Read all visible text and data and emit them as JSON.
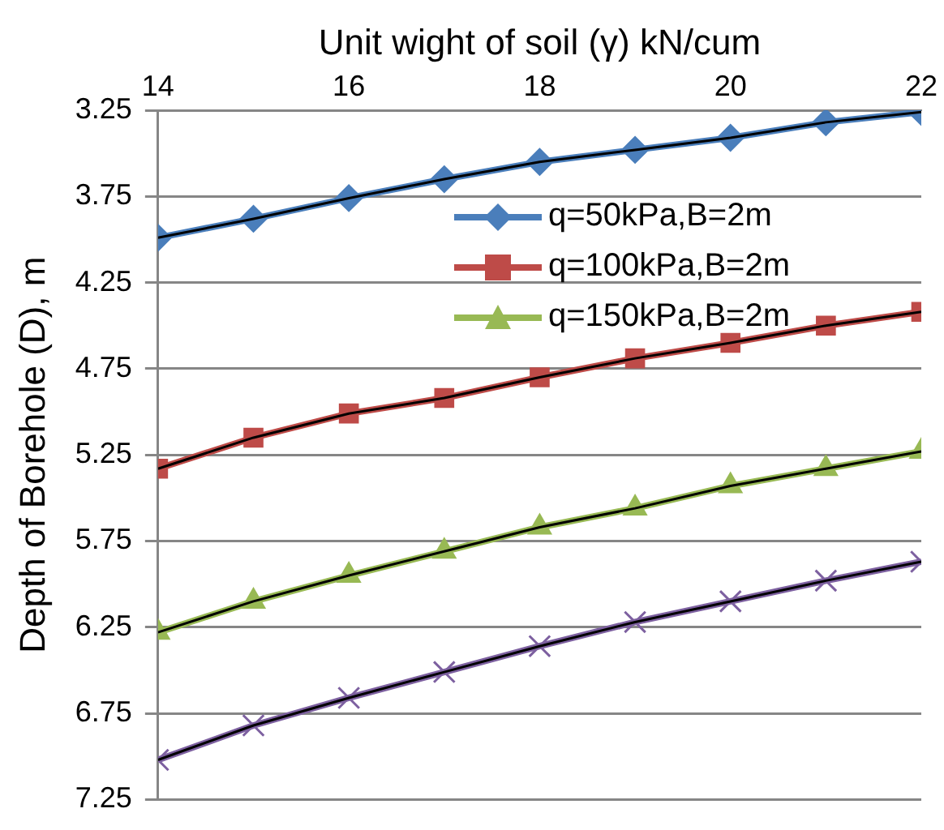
{
  "chart_data": {
    "type": "line",
    "xlabel": "Unit wight of soil (γ) kN/cum",
    "ylabel": "Depth of Borehole (D), m",
    "xlim": [
      14,
      22
    ],
    "xticks": [
      14,
      16,
      18,
      20,
      22
    ],
    "ylim": [
      7.25,
      3.25
    ],
    "yticks": [
      3.25,
      3.75,
      4.25,
      4.75,
      5.25,
      5.75,
      6.25,
      6.75,
      7.25
    ],
    "grid": "y",
    "legend": "top right",
    "line_style": "solid",
    "series": [
      {
        "name": "q=50kPa,B=2m",
        "color": "#4a7ebb",
        "marker": "diamond",
        "x": [
          14,
          15,
          16,
          17,
          18,
          19,
          20,
          21,
          22
        ],
        "values": [
          3.99,
          3.88,
          3.76,
          3.65,
          3.55,
          3.48,
          3.41,
          3.32,
          3.26
        ]
      },
      {
        "name": "q=100kPa,B=2m",
        "color": "#be4b48",
        "marker": "square",
        "x": [
          14,
          15,
          16,
          17,
          18,
          19,
          20,
          21,
          22
        ],
        "values": [
          5.33,
          5.15,
          5.01,
          4.92,
          4.8,
          4.69,
          4.6,
          4.5,
          4.42
        ]
      },
      {
        "name": "q=150kPa,B=2m",
        "color": "#98b954",
        "marker": "triangle",
        "x": [
          14,
          15,
          16,
          17,
          18,
          19,
          20,
          21,
          22
        ],
        "values": [
          6.28,
          6.1,
          5.95,
          5.81,
          5.67,
          5.56,
          5.43,
          5.33,
          5.23
        ]
      },
      {
        "color": "#7d60a0",
        "marker": "cross",
        "x": [
          14,
          15,
          16,
          17,
          18,
          19,
          20,
          21,
          22
        ],
        "values": [
          7.02,
          6.82,
          6.66,
          6.51,
          6.36,
          6.22,
          6.1,
          5.98,
          5.87
        ]
      },
      {
        "color": "#000000",
        "marker": "none",
        "x": [
          14,
          15,
          16,
          17,
          18,
          19,
          20,
          21,
          22
        ],
        "values": [
          3.99,
          3.88,
          3.76,
          3.65,
          3.55,
          3.48,
          3.41,
          3.32,
          3.26
        ]
      },
      {
        "color": "#000000",
        "marker": "none",
        "x": [
          14,
          15,
          16,
          17,
          18,
          19,
          20,
          21,
          22
        ],
        "values": [
          5.33,
          5.15,
          5.01,
          4.92,
          4.8,
          4.69,
          4.6,
          4.5,
          4.42
        ]
      },
      {
        "color": "#000000",
        "marker": "none",
        "x": [
          14,
          15,
          16,
          17,
          18,
          19,
          20,
          21,
          22
        ],
        "values": [
          6.28,
          6.1,
          5.95,
          5.81,
          5.67,
          5.56,
          5.43,
          5.33,
          5.23
        ]
      },
      {
        "color": "#000000",
        "marker": "none",
        "x": [
          14,
          15,
          16,
          17,
          18,
          19,
          20,
          21,
          22
        ],
        "values": [
          7.02,
          6.82,
          6.66,
          6.51,
          6.36,
          6.22,
          6.1,
          5.98,
          5.87
        ]
      }
    ]
  }
}
